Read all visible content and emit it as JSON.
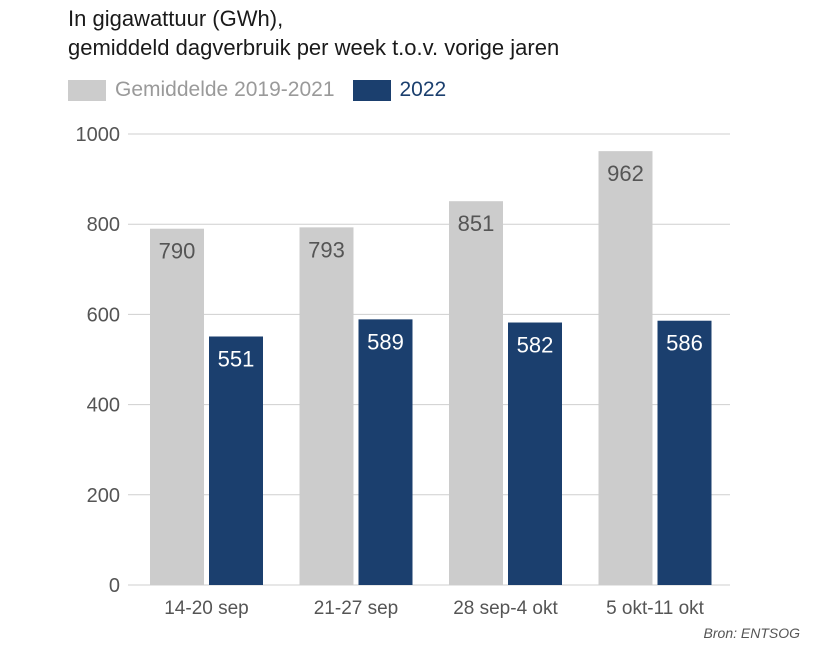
{
  "title_lines": [
    "In gigawattuur (GWh),",
    "gemiddeld dagverbruik per week t.o.v. vorige jaren"
  ],
  "source": "Bron: ENTSOG",
  "colors": {
    "avg": "#cccccc",
    "y2022": "#1b3f6e",
    "grid": "#cfcfcf",
    "axis_text": "#555555",
    "label_light": "#ffffff",
    "label_dark": "#555555"
  },
  "chart_data": {
    "type": "bar",
    "categories": [
      "14-20 sep",
      "21-27 sep",
      "28 sep-4 okt",
      "5 okt-11 okt"
    ],
    "series": [
      {
        "name": "Gemiddelde 2019-2021",
        "values": [
          790,
          793,
          851,
          962
        ]
      },
      {
        "name": "2022",
        "values": [
          551,
          589,
          582,
          586
        ]
      }
    ],
    "ylim": [
      0,
      1000
    ],
    "yticks": [
      0,
      200,
      400,
      600,
      800,
      1000
    ],
    "grid": true,
    "legend": "top-left",
    "xlabel": "",
    "ylabel": ""
  }
}
